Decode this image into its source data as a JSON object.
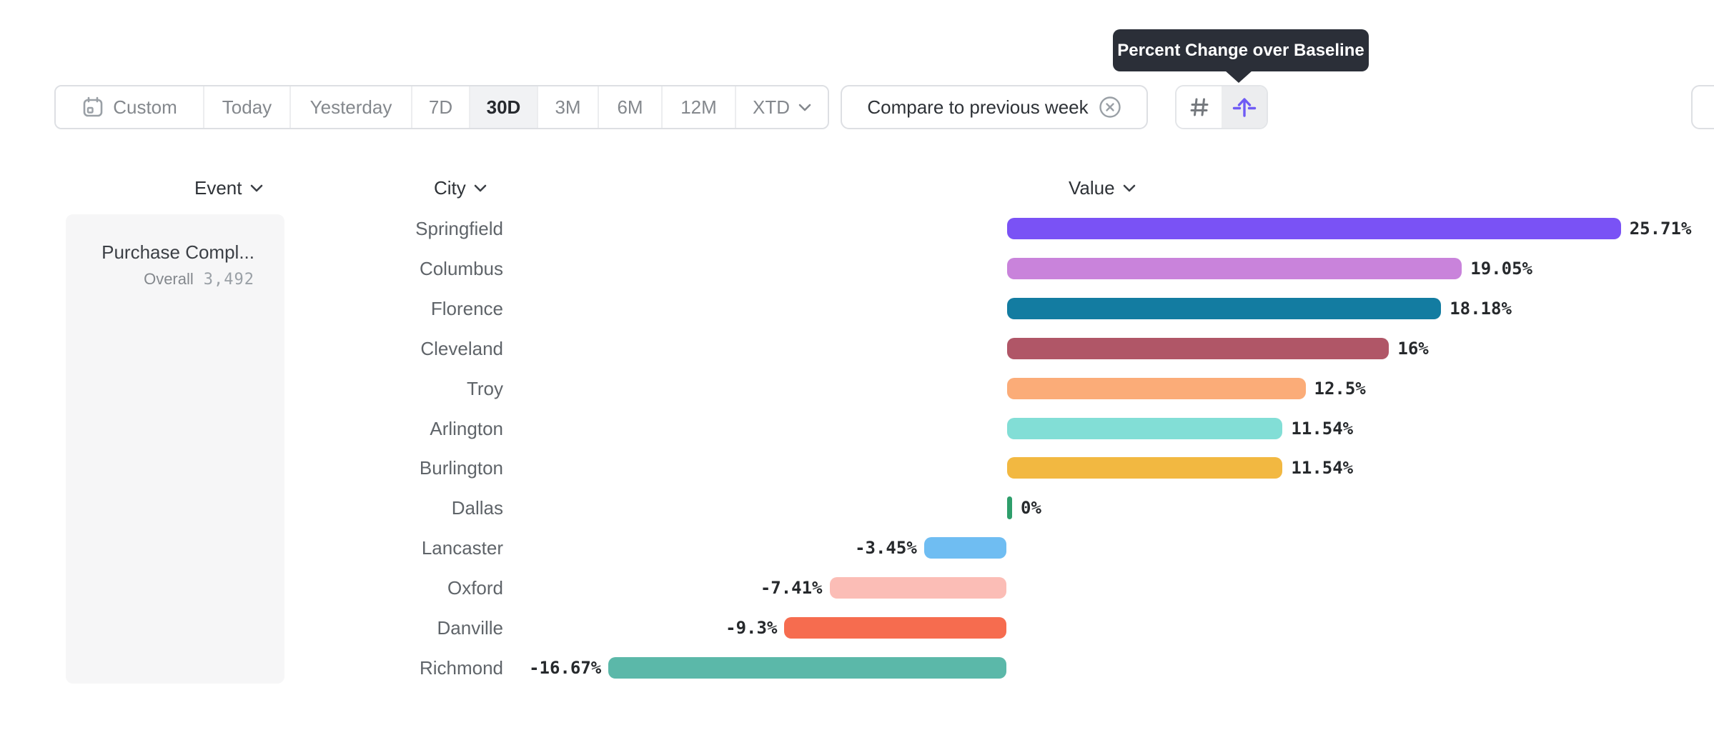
{
  "tooltip": {
    "text": "Percent Change over Baseline"
  },
  "toolbar": {
    "date_ranges": [
      {
        "label": "Custom",
        "icon": "calendar-icon",
        "selected": false
      },
      {
        "label": "Today",
        "selected": false
      },
      {
        "label": "Yesterday",
        "selected": false
      },
      {
        "label": "7D",
        "selected": false
      },
      {
        "label": "30D",
        "selected": true
      },
      {
        "label": "3M",
        "selected": false
      },
      {
        "label": "6M",
        "selected": false
      },
      {
        "label": "12M",
        "selected": false
      },
      {
        "label": "XTD",
        "icon": "chevron-down-icon",
        "selected": false
      }
    ],
    "selected_range": "30D",
    "compare_button": {
      "label": "Compare to previous week",
      "icon": "circle-x-icon"
    },
    "view_toggle": {
      "buttons": [
        {
          "name": "grid-view",
          "icon": "grid-icon",
          "selected": false
        },
        {
          "name": "percent-change-view",
          "icon": "baseline-arrow-icon",
          "selected": true
        }
      ]
    }
  },
  "columns": {
    "event": "Event",
    "city": "City",
    "value": "Value"
  },
  "event_panel": {
    "name": "Purchase Compl...",
    "segment_label": "Overall",
    "segment_value": "3,492"
  },
  "chart_data": {
    "type": "bar",
    "orientation": "horizontal",
    "title": "Percent Change over Baseline",
    "unit": "%",
    "baseline": 0,
    "categories": [
      "Springfield",
      "Columbus",
      "Florence",
      "Cleveland",
      "Troy",
      "Arlington",
      "Burlington",
      "Dallas",
      "Lancaster",
      "Oxford",
      "Danville",
      "Richmond"
    ],
    "values": [
      25.71,
      19.05,
      18.18,
      16,
      12.5,
      11.54,
      11.54,
      0,
      -3.45,
      -7.41,
      -9.3,
      -16.67
    ],
    "value_labels": [
      "25.71%",
      "19.05%",
      "18.18%",
      "16%",
      "12.5%",
      "11.54%",
      "11.54%",
      "0%",
      "-3.45%",
      "-7.41%",
      "-9.3%",
      "-16.67%"
    ],
    "colors": [
      "#7A52F5",
      "#C983DB",
      "#137CA1",
      "#B05667",
      "#FBAC78",
      "#82DED6",
      "#F2B841",
      "#2E9E6B",
      "#6FBDF2",
      "#FBBDB6",
      "#F66C4F",
      "#5BB8A9"
    ]
  },
  "colors": {
    "accent_purple": "#6F5BF5",
    "tooltip_bg": "#2B2F38",
    "zero_bar_green": "#2E9E6B",
    "selected_cell_bg": "#F1F2F4",
    "border": "#DDDFE3"
  }
}
